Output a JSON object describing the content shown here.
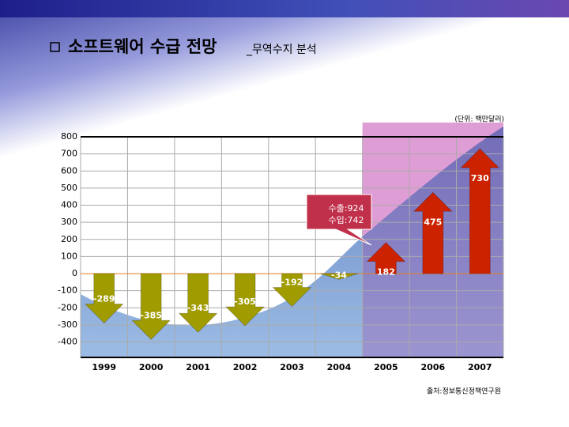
{
  "chart_data": {
    "type": "arrow-bar",
    "title": "소프트웨어 수급 전망",
    "subtitle": "_무역수지 분석",
    "unit": "(단위: 백만달러)",
    "source": "출처:정보통신정책연구원",
    "annotations": [
      "수출:924",
      "수입:742"
    ],
    "categories": [
      "1999",
      "2000",
      "2001",
      "2002",
      "2003",
      "2004",
      "2005",
      "2006",
      "2007"
    ],
    "values": [
      -289,
      -385,
      -343,
      -305,
      -192,
      -34,
      182,
      475,
      730
    ],
    "negative_color": "#a09c00",
    "positive_color": "#cc2200",
    "ylim": [
      -490,
      800
    ],
    "yticks": [
      800,
      700,
      600,
      500,
      400,
      300,
      200,
      100,
      0,
      -100,
      -200,
      -300,
      -400
    ],
    "grid": true
  }
}
